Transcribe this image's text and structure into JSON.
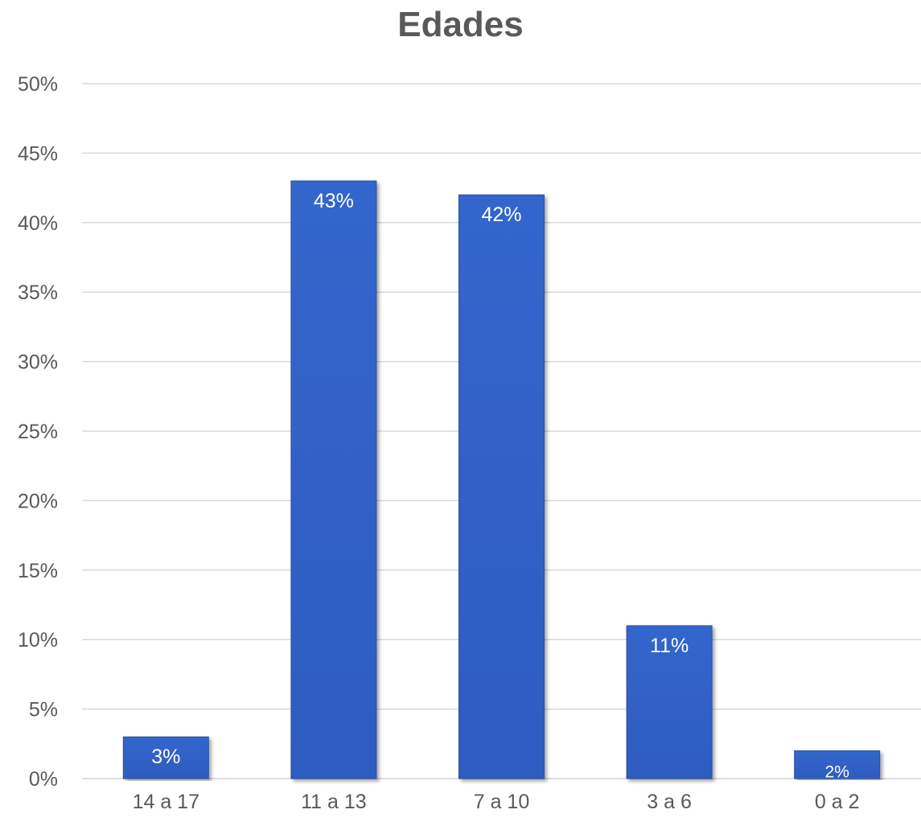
{
  "chart_data": {
    "type": "bar",
    "title": "Edades",
    "categories": [
      "14 a 17",
      "11 a 13",
      "7 a 10",
      "3 a 6",
      "0 a 2"
    ],
    "values": [
      3,
      43,
      42,
      11,
      2
    ],
    "data_labels": [
      "3%",
      "43%",
      "42%",
      "11%",
      "2%"
    ],
    "ylim": [
      0,
      50
    ],
    "yticks": [
      0,
      5,
      10,
      15,
      20,
      25,
      30,
      35,
      40,
      45,
      50
    ],
    "ytick_labels": [
      "0%",
      "5%",
      "10%",
      "15%",
      "20%",
      "25%",
      "30%",
      "35%",
      "40%",
      "45%",
      "50%"
    ],
    "xlabel": "",
    "ylabel": "",
    "grid": true,
    "legend": "none",
    "colors": {
      "bar": "#3366cc",
      "bar_dark": "#2d5cc0",
      "bar_border": "#2a4f9e",
      "text": "#595959",
      "title": "#595959",
      "grid": "#d9d9d9",
      "data_label": "#ffffff"
    }
  }
}
